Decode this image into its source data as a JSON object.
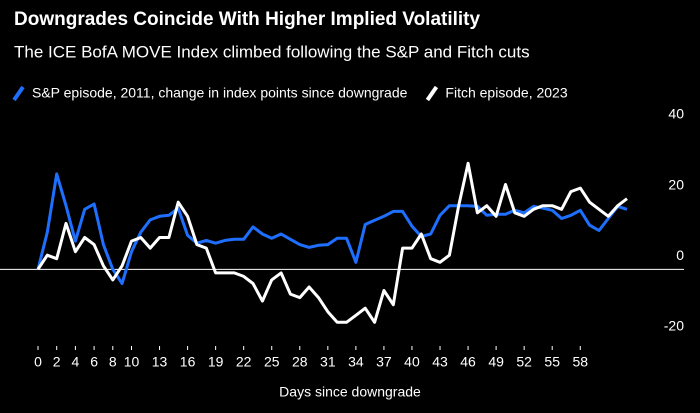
{
  "chart_data": {
    "type": "line",
    "title": "Downgrades Coincide With Higher Implied Volatility",
    "subtitle": "The ICE BofA MOVE Index climbed following the S&P and Fitch cuts",
    "x_label": "Days since downgrade",
    "x": [
      0,
      1,
      2,
      3,
      4,
      5,
      6,
      7,
      8,
      9,
      10,
      11,
      12,
      13,
      14,
      15,
      16,
      17,
      18,
      19,
      20,
      21,
      22,
      23,
      24,
      25,
      26,
      27,
      28,
      29,
      30,
      31,
      32,
      33,
      34,
      35,
      36,
      37,
      38,
      39,
      40,
      41,
      42,
      43,
      44,
      45,
      46,
      47,
      48,
      49,
      50,
      51,
      52,
      53,
      54,
      55,
      56,
      57,
      58,
      59,
      60,
      61,
      62,
      63
    ],
    "xlim": [
      0,
      63
    ],
    "xticks": [
      0,
      2,
      4,
      6,
      8,
      10,
      13,
      16,
      19,
      22,
      25,
      28,
      31,
      34,
      37,
      40,
      43,
      46,
      49,
      52,
      55,
      58
    ],
    "ylim": [
      -20,
      40
    ],
    "yticks": [
      -20,
      0,
      20,
      40
    ],
    "grid": false,
    "series": [
      {
        "name": "S&P episode, 2011, change in index points since downgrade",
        "color": "#1f6fff",
        "values": [
          0,
          10.5,
          27,
          18,
          8,
          17,
          18.5,
          7,
          0,
          -4,
          5,
          10.5,
          14,
          15,
          15.3,
          17.3,
          9.6,
          7.4,
          8.2,
          7.4,
          8.2,
          8.5,
          8.5,
          12,
          10,
          8.8,
          10,
          8.5,
          7,
          6.2,
          6.8,
          7,
          8.8,
          8.8,
          2,
          12.7,
          13.9,
          15,
          16.4,
          16.4,
          12.2,
          9.3,
          10,
          15.3,
          18,
          18,
          18,
          17.8,
          15.3,
          15.6,
          15.6,
          16.7,
          16,
          17.8,
          17.3,
          16.7,
          14.4,
          15.3,
          16.7,
          12.5,
          11,
          14.4,
          17.8,
          17
        ]
      },
      {
        "name": "Fitch episode, 2023",
        "color": "#ffffff",
        "values": [
          0,
          4,
          3,
          13,
          5,
          9,
          7,
          1,
          -3,
          1,
          8,
          9,
          6,
          9,
          9,
          19,
          15,
          7,
          6,
          -1,
          -1,
          -1,
          -2,
          -4,
          -9,
          -3,
          -1,
          -7,
          -8,
          -5,
          -8,
          -12,
          -15,
          -15,
          -13,
          -11,
          -15,
          -6,
          -10,
          6,
          6,
          10,
          3,
          2,
          4,
          18,
          30,
          16,
          18,
          15,
          24,
          16,
          15,
          17,
          18,
          18,
          17,
          22,
          23,
          19,
          17,
          15,
          18,
          20
        ]
      }
    ]
  }
}
